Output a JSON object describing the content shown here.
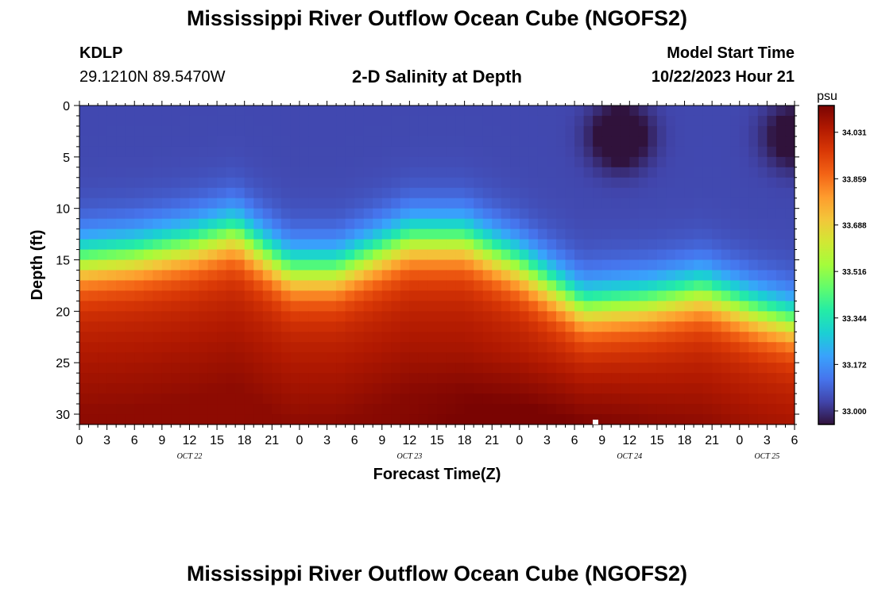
{
  "page": {
    "title": "Mississippi River Outflow Ocean Cube (NGOFS2)",
    "title_repeat": "Mississippi River Outflow Ocean Cube (NGOFS2)",
    "station": "KDLP",
    "coordinates": "29.1210N  89.5470W",
    "subtitle": "2-D Salinity at Depth",
    "model_start_label": "Model Start Time",
    "model_start_value": "10/22/2023 Hour 21"
  },
  "chart_data": {
    "type": "heatmap",
    "title": "2-D Salinity at Depth",
    "xlabel": "Forecast Time(Z)",
    "ylabel": "Depth (ft)",
    "x_unit": "hours from 00Z Oct 22",
    "x_range": [
      0,
      78
    ],
    "y_range": [
      0,
      31
    ],
    "y_inverted": true,
    "x_ticks": [
      {
        "hour": 0,
        "label": "0"
      },
      {
        "hour": 3,
        "label": "3"
      },
      {
        "hour": 6,
        "label": "6"
      },
      {
        "hour": 9,
        "label": "9"
      },
      {
        "hour": 12,
        "label": "12"
      },
      {
        "hour": 15,
        "label": "15"
      },
      {
        "hour": 18,
        "label": "18"
      },
      {
        "hour": 21,
        "label": "21"
      },
      {
        "hour": 24,
        "label": "0"
      },
      {
        "hour": 27,
        "label": "3"
      },
      {
        "hour": 30,
        "label": "6"
      },
      {
        "hour": 33,
        "label": "9"
      },
      {
        "hour": 36,
        "label": "12"
      },
      {
        "hour": 39,
        "label": "15"
      },
      {
        "hour": 42,
        "label": "18"
      },
      {
        "hour": 45,
        "label": "21"
      },
      {
        "hour": 48,
        "label": "0"
      },
      {
        "hour": 51,
        "label": "3"
      },
      {
        "hour": 54,
        "label": "6"
      },
      {
        "hour": 57,
        "label": "9"
      },
      {
        "hour": 60,
        "label": "12"
      },
      {
        "hour": 63,
        "label": "15"
      },
      {
        "hour": 66,
        "label": "18"
      },
      {
        "hour": 69,
        "label": "21"
      },
      {
        "hour": 72,
        "label": "0"
      },
      {
        "hour": 75,
        "label": "3"
      },
      {
        "hour": 78,
        "label": "6"
      }
    ],
    "date_labels": [
      {
        "hour": 12,
        "label": "OCT 22"
      },
      {
        "hour": 36,
        "label": "OCT 23"
      },
      {
        "hour": 60,
        "label": "OCT 24"
      },
      {
        "hour": 75,
        "label": "OCT 25"
      }
    ],
    "y_ticks": [
      0,
      5,
      10,
      15,
      20,
      25,
      30
    ],
    "colorbar": {
      "unit": "psu",
      "min": 32.95,
      "max": 34.13,
      "labels": [
        34.031,
        33.859,
        33.688,
        33.516,
        33.344,
        33.172,
        33.0
      ],
      "colors": [
        "#30123b",
        "#4145ab",
        "#4675ed",
        "#39a2fc",
        "#1bcfd4",
        "#24eca6",
        "#61fc6c",
        "#a4fc3b",
        "#d1e834",
        "#f3c63a",
        "#fe9b2d",
        "#f36315",
        "#d93806",
        "#b11901",
        "#7a0402"
      ]
    },
    "salinity_model": {
      "surface_psu": 33.04,
      "bottom_psu": 34.1,
      "halocline_center_depth_ft": [
        {
          "hour": 0,
          "depth": 15.0
        },
        {
          "hour": 6,
          "depth": 14.5
        },
        {
          "hour": 12,
          "depth": 13.5
        },
        {
          "hour": 17,
          "depth": 12.3
        },
        {
          "hour": 23,
          "depth": 16.0
        },
        {
          "hour": 28,
          "depth": 16.0
        },
        {
          "hour": 36,
          "depth": 13.0
        },
        {
          "hour": 42,
          "depth": 13.0
        },
        {
          "hour": 48,
          "depth": 15.5
        },
        {
          "hour": 55,
          "depth": 19.5
        },
        {
          "hour": 62,
          "depth": 19.0
        },
        {
          "hour": 68,
          "depth": 18.0
        },
        {
          "hour": 74,
          "depth": 20.0
        },
        {
          "hour": 78,
          "depth": 21.0
        }
      ],
      "halocline_thickness_ft": 3.5,
      "fresh_pockets": [
        {
          "hour": 59,
          "depth": 3.0,
          "strength_psu": 0.18
        },
        {
          "hour": 78,
          "depth": 3.0,
          "strength_psu": 0.15
        }
      ],
      "bottom_max_hour": 52
    }
  }
}
